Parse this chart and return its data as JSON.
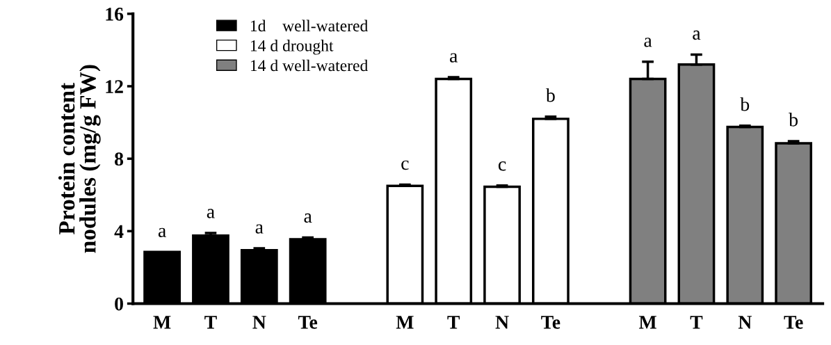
{
  "chart_data": {
    "type": "bar",
    "ylabel": "Protein content\nnodules (mg/g FW)",
    "categories": [
      "M",
      "T",
      "N",
      "Te",
      null,
      "M",
      "T",
      "N",
      "Te",
      null,
      "M",
      "T",
      "N",
      "Te"
    ],
    "series": [
      {
        "name": "1d    well-watered",
        "color": "#000000",
        "values": [
          2.85,
          3.75,
          2.95,
          3.55,
          null,
          null,
          null,
          null,
          null,
          null,
          null,
          null,
          null,
          null
        ],
        "errors": [
          null,
          0.15,
          0.1,
          0.1,
          null,
          null,
          null,
          null,
          null,
          null,
          null,
          null,
          null,
          null
        ],
        "value_labels": [
          "a",
          "a",
          "a",
          "a",
          null,
          null,
          null,
          null,
          null,
          null,
          null,
          null,
          null,
          null
        ]
      },
      {
        "name": "14 d drought",
        "color": "#ffffff",
        "values": [
          null,
          null,
          null,
          null,
          null,
          6.5,
          12.4,
          6.45,
          10.2,
          null,
          null,
          null,
          null,
          null
        ],
        "errors": [
          null,
          null,
          null,
          null,
          null,
          0.07,
          0.1,
          0.07,
          0.12,
          null,
          null,
          null,
          null,
          null
        ],
        "value_labels": [
          null,
          null,
          null,
          null,
          null,
          "c",
          "a",
          "c",
          "b",
          null,
          null,
          null,
          null,
          null
        ]
      },
      {
        "name": "14 d well-watered",
        "color": "#808080",
        "values": [
          null,
          null,
          null,
          null,
          null,
          null,
          null,
          null,
          null,
          null,
          12.4,
          13.2,
          9.75,
          8.85
        ],
        "errors": [
          null,
          null,
          null,
          null,
          null,
          null,
          null,
          null,
          null,
          null,
          0.95,
          0.55,
          0.07,
          0.12
        ],
        "value_labels": [
          null,
          null,
          null,
          null,
          null,
          null,
          null,
          null,
          null,
          null,
          "a",
          "a",
          "b",
          "b"
        ]
      }
    ],
    "ylim": [
      0,
      16
    ],
    "yticks": [
      0,
      4,
      8,
      12,
      16
    ],
    "grid": false,
    "legend": "top left"
  }
}
